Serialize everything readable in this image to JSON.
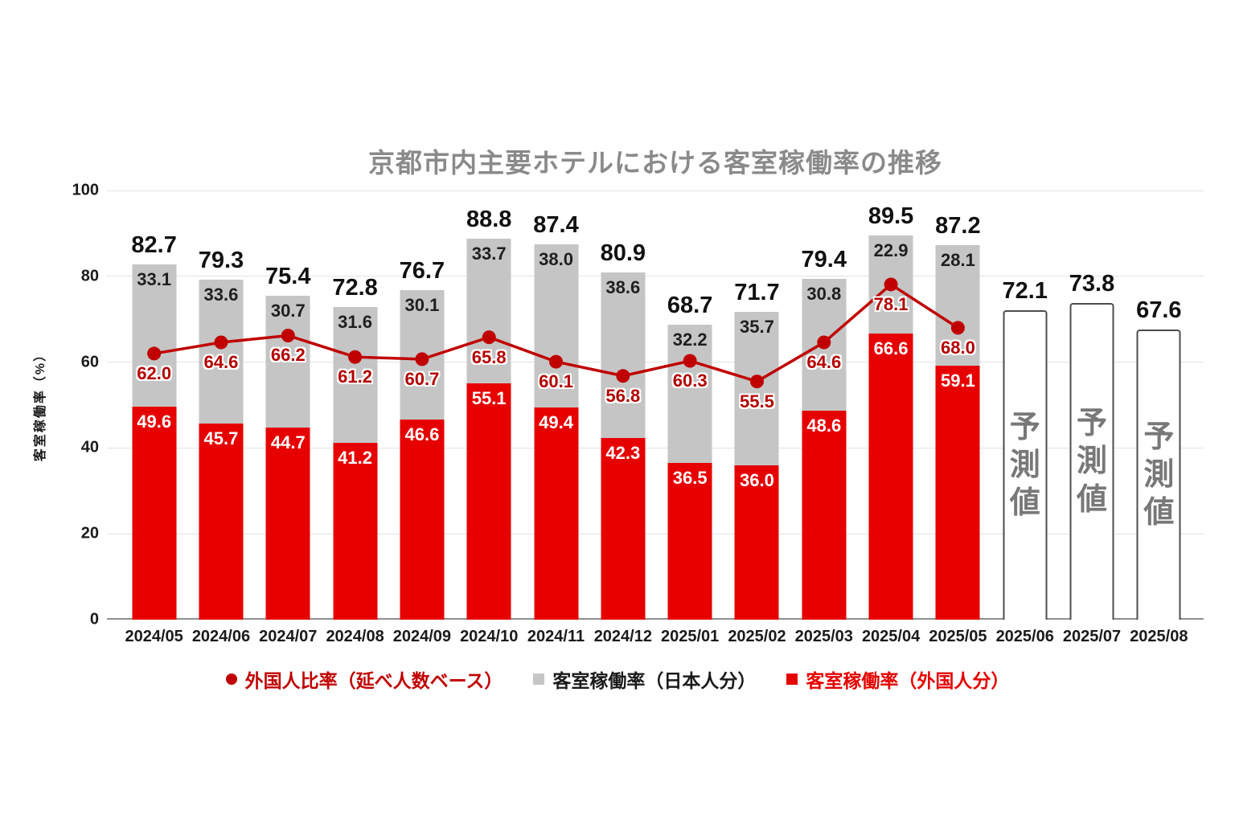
{
  "title": "京都市内主要ホテルにおける客室稼働率の推移",
  "y_axis": {
    "label": "客室稼働率（%）",
    "ticks": [
      0,
      20,
      40,
      60,
      80,
      100
    ]
  },
  "forecast_label": "予測値",
  "legend": {
    "items": [
      {
        "label": "外国人比率（延べ人数ベース）",
        "marker": "circle",
        "color": "#c00000"
      },
      {
        "label": "客室稼働率（日本人分）",
        "marker": "square",
        "color": "#c5c5c5",
        "text_color": "#1a1a1a"
      },
      {
        "label": "客室稼働率（外国人分）",
        "marker": "square",
        "color": "#e60000"
      }
    ]
  },
  "colors": {
    "bar_foreign": "#e60000",
    "bar_japanese": "#c5c5c5",
    "trend_line": "#c00000",
    "title_gray": "#8a8a8a",
    "forecast_text": "#787878"
  },
  "chart_data": {
    "type": "bar",
    "subtype": "stacked-bars-with-line-overlay",
    "title": "京都市内主要ホテルにおける客室稼働率の推移",
    "xlabel": "",
    "ylabel": "客室稼働率（%）",
    "ylim": [
      0,
      100
    ],
    "grid": true,
    "legend_position": "bottom",
    "categories": [
      "2024/05",
      "2024/06",
      "2024/07",
      "2024/08",
      "2024/09",
      "2024/10",
      "2024/11",
      "2024/12",
      "2025/01",
      "2025/02",
      "2025/03",
      "2025/04",
      "2025/05",
      "2025/06",
      "2025/07",
      "2025/08"
    ],
    "series": [
      {
        "name": "客室稼働率（外国人分）",
        "type": "bar",
        "color": "#e60000",
        "values": [
          49.6,
          45.7,
          44.7,
          41.2,
          46.6,
          55.1,
          49.4,
          42.3,
          36.5,
          36.0,
          48.6,
          66.6,
          59.1,
          null,
          null,
          null
        ]
      },
      {
        "name": "客室稼働率（日本人分）",
        "type": "bar",
        "color": "#c5c5c5",
        "values": [
          33.1,
          33.6,
          30.7,
          31.6,
          30.1,
          33.7,
          38.0,
          38.6,
          32.2,
          35.7,
          30.8,
          22.9,
          28.1,
          null,
          null,
          null
        ]
      },
      {
        "name": "外国人比率（延べ人数ベース）",
        "type": "line",
        "color": "#c00000",
        "values": [
          62.0,
          64.6,
          66.2,
          61.2,
          60.7,
          65.8,
          60.1,
          56.8,
          60.3,
          55.5,
          64.6,
          78.1,
          68.0,
          null,
          null,
          null
        ]
      }
    ],
    "totals": [
      82.7,
      79.3,
      75.4,
      72.8,
      76.7,
      88.8,
      87.4,
      80.9,
      68.7,
      71.7,
      79.4,
      89.5,
      87.2,
      72.1,
      73.8,
      67.6
    ],
    "forecast_indices": [
      13,
      14,
      15
    ],
    "forecast_bar_style": "white-outlined"
  }
}
